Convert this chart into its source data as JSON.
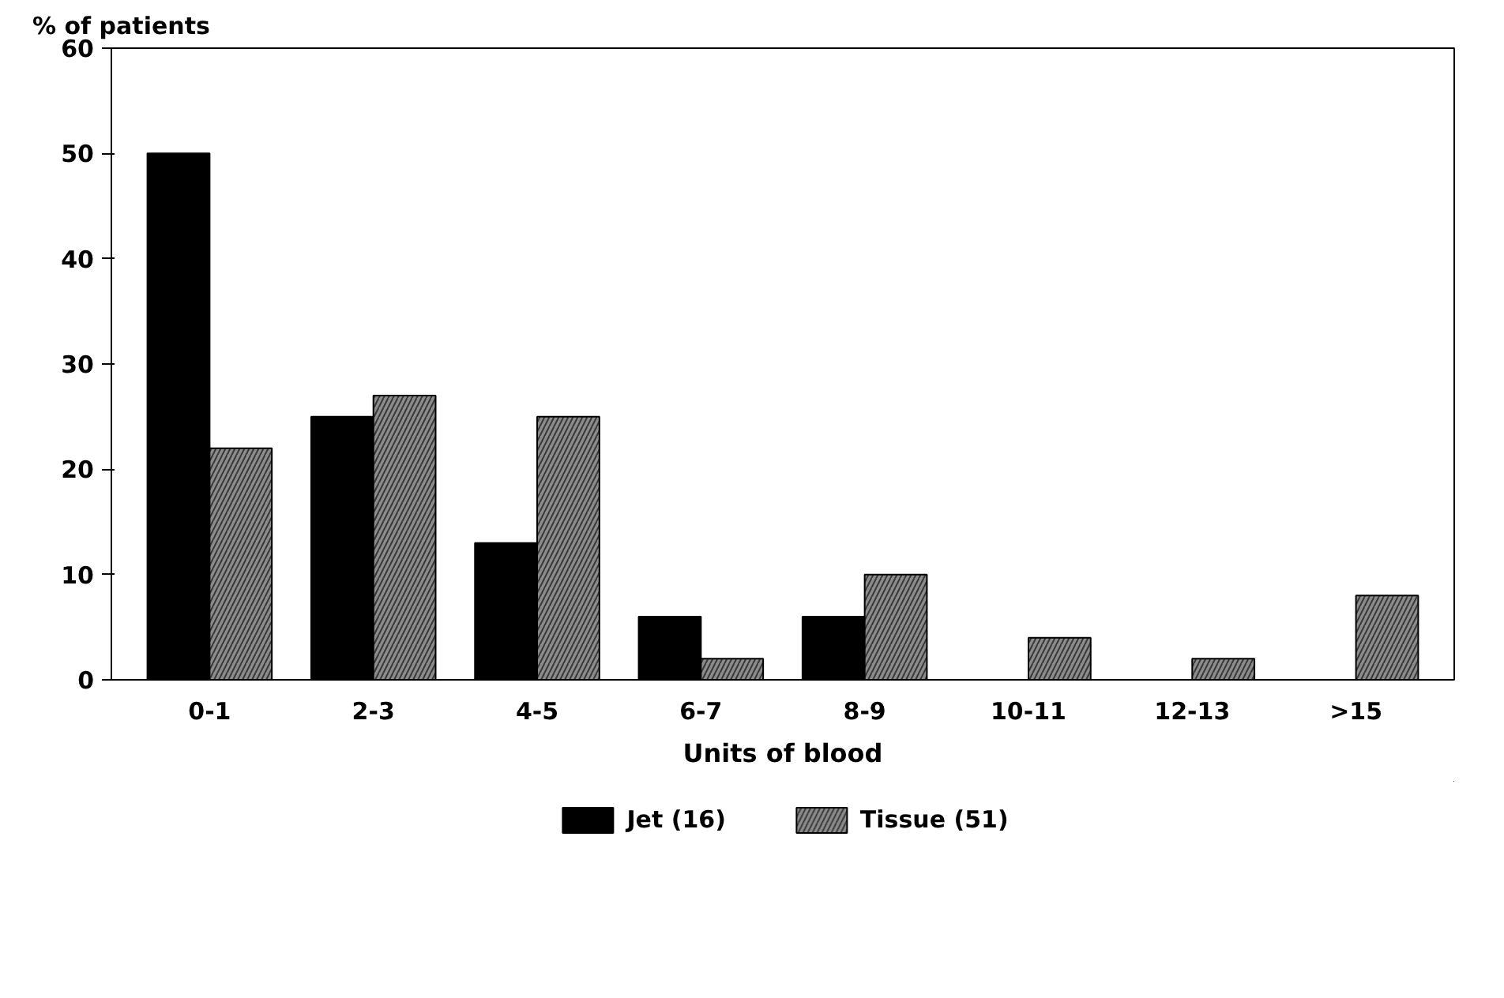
{
  "chart_data": {
    "type": "bar",
    "ylabel": "% of patients",
    "xlabel": "Units of blood",
    "categories": [
      "0-1",
      "2-3",
      "4-5",
      "6-7",
      "8-9",
      "10-11",
      "12-13",
      ">15"
    ],
    "series": [
      {
        "name": "Jet (16)",
        "color": "#000000",
        "values": [
          50,
          25,
          13,
          6,
          6,
          null,
          null,
          null
        ]
      },
      {
        "name": "Tissue (51)",
        "color": "#8c8c8c",
        "values": [
          22,
          27,
          25,
          2,
          10,
          4,
          2,
          8
        ]
      }
    ],
    "ylim": [
      0,
      60
    ],
    "yticks": [
      0,
      10,
      20,
      30,
      40,
      50,
      60
    ],
    "grid": false,
    "legend": "bottom"
  }
}
